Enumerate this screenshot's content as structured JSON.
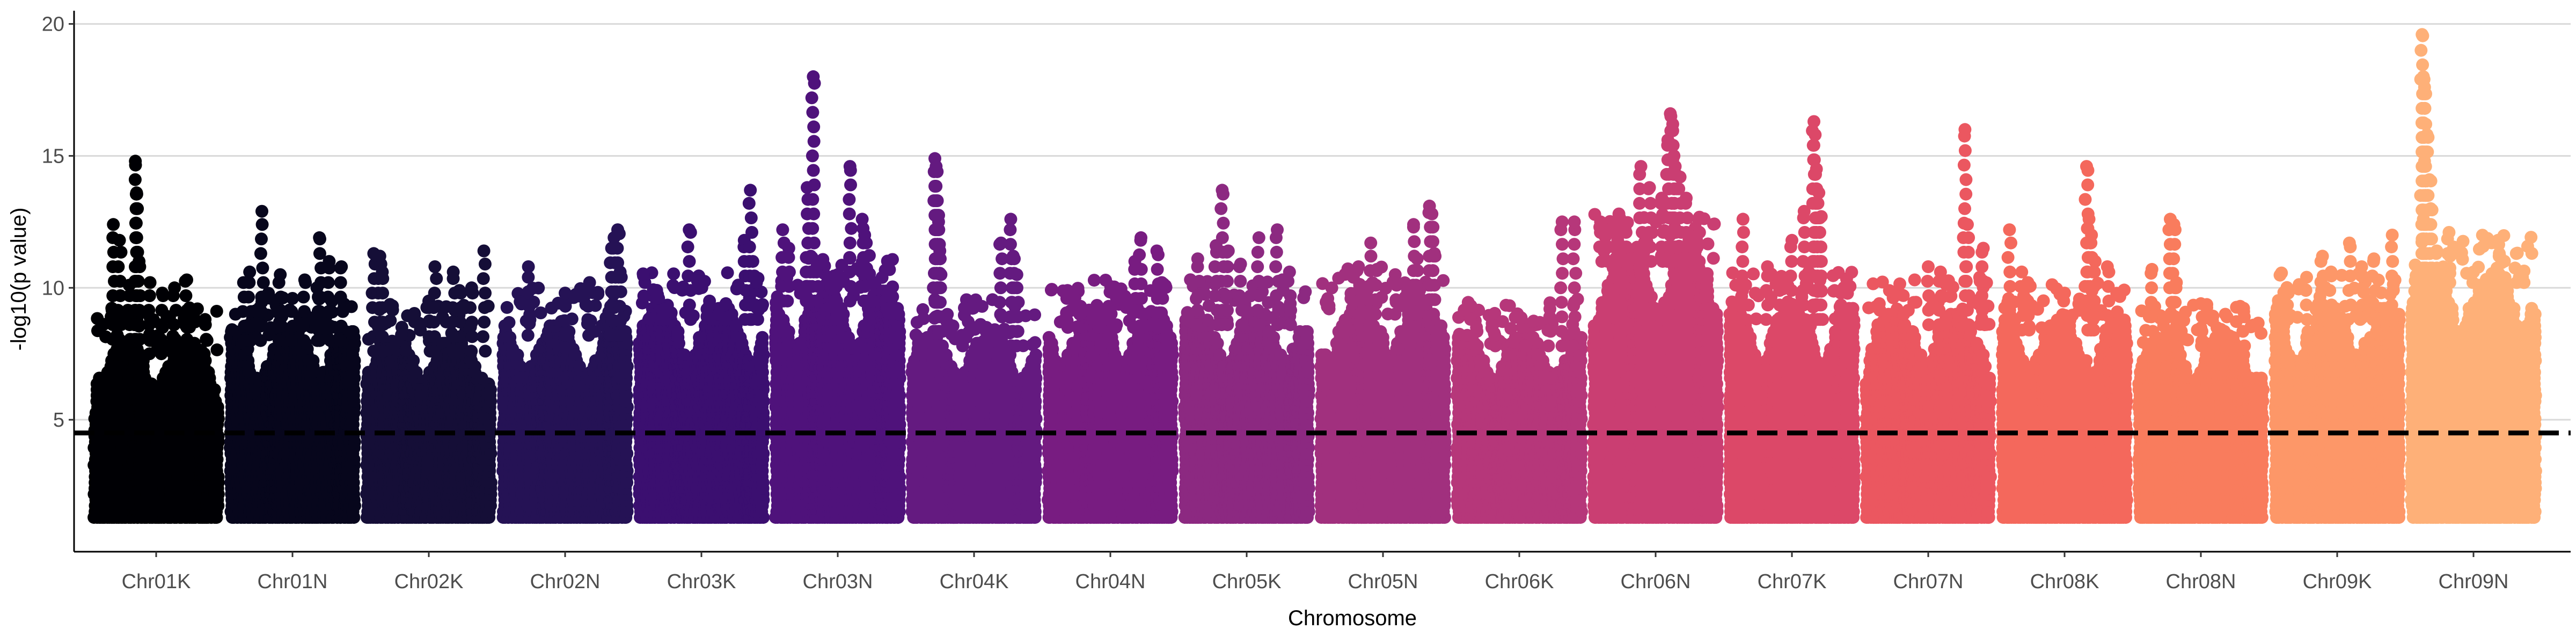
{
  "chart_data": {
    "type": "scatter",
    "subtype": "manhattan",
    "xlabel": "Chromosome",
    "ylabel": "-log10(p value)",
    "ylim": [
      0,
      20.5
    ],
    "yticks": [
      5,
      10,
      15,
      20
    ],
    "grid": "horizontal major lines",
    "legend": "none",
    "threshold": {
      "value": 4.5,
      "style": "dashed",
      "color": "#000000"
    },
    "min_plotted_value": 1.3,
    "categories": [
      "Chr01K",
      "Chr01N",
      "Chr02K",
      "Chr02N",
      "Chr03K",
      "Chr03N",
      "Chr04K",
      "Chr04N",
      "Chr05K",
      "Chr05N",
      "Chr06K",
      "Chr06N",
      "Chr07K",
      "Chr07N",
      "Chr08K",
      "Chr08N",
      "Chr09K",
      "Chr09N"
    ],
    "series": [
      {
        "category": "Chr01K",
        "color": "#000004",
        "bulk_max": 7.5,
        "peaks": [
          [
            0.15,
            12.4
          ],
          [
            0.2,
            11.8
          ],
          [
            0.28,
            10.1
          ],
          [
            0.33,
            14.8
          ],
          [
            0.34,
            13.6
          ],
          [
            0.36,
            11.0
          ],
          [
            0.45,
            10.2
          ],
          [
            0.55,
            9.8
          ],
          [
            0.65,
            10.0
          ],
          [
            0.75,
            10.3
          ],
          [
            0.9,
            8.8
          ]
        ]
      },
      {
        "category": "Chr01N",
        "color": "#07061c",
        "bulk_max": 8.0,
        "peaks": [
          [
            0.1,
            10.2
          ],
          [
            0.15,
            10.6
          ],
          [
            0.25,
            12.9
          ],
          [
            0.4,
            10.5
          ],
          [
            0.5,
            9.6
          ],
          [
            0.6,
            10.3
          ],
          [
            0.7,
            10.0
          ],
          [
            0.72,
            11.9
          ],
          [
            0.8,
            11.0
          ],
          [
            0.9,
            10.8
          ]
        ]
      },
      {
        "category": "Chr02K",
        "color": "#150e37",
        "bulk_max": 7.6,
        "peaks": [
          [
            0.05,
            11.3
          ],
          [
            0.1,
            11.2
          ],
          [
            0.12,
            10.6
          ],
          [
            0.5,
            9.5
          ],
          [
            0.55,
            10.8
          ],
          [
            0.7,
            10.6
          ],
          [
            0.75,
            9.9
          ],
          [
            0.85,
            10.0
          ],
          [
            0.95,
            11.4
          ]
        ]
      },
      {
        "category": "Chr02N",
        "color": "#251255",
        "bulk_max": 8.2,
        "peaks": [
          [
            0.2,
            10.8
          ],
          [
            0.5,
            9.8
          ],
          [
            0.7,
            10.2
          ],
          [
            0.9,
            11.9
          ],
          [
            0.93,
            12.2
          ],
          [
            0.88,
            11.5
          ],
          [
            0.95,
            10.6
          ]
        ]
      },
      {
        "category": "Chr03K",
        "color": "#3b0f70",
        "bulk_max": 8.8,
        "peaks": [
          [
            0.15,
            9.6
          ],
          [
            0.2,
            9.2
          ],
          [
            0.4,
            12.2
          ],
          [
            0.7,
            9.4
          ],
          [
            0.85,
            11.8
          ],
          [
            0.9,
            13.7
          ],
          [
            0.92,
            11.0
          ],
          [
            0.95,
            10.2
          ]
        ]
      },
      {
        "category": "Chr03N",
        "color": "#4f127b",
        "bulk_max": 9.5,
        "peaks": [
          [
            0.05,
            12.2
          ],
          [
            0.1,
            11.5
          ],
          [
            0.25,
            13.8
          ],
          [
            0.3,
            18.0
          ],
          [
            0.28,
            11.2
          ],
          [
            0.33,
            10.8
          ],
          [
            0.5,
            10.5
          ],
          [
            0.6,
            14.6
          ],
          [
            0.7,
            12.6
          ],
          [
            0.72,
            12.0
          ],
          [
            0.8,
            10.2
          ],
          [
            0.9,
            9.2
          ]
        ]
      },
      {
        "category": "Chr04K",
        "color": "#641a80",
        "bulk_max": 7.8,
        "peaks": [
          [
            0.18,
            14.9
          ],
          [
            0.19,
            14.6
          ],
          [
            0.2,
            13.3
          ],
          [
            0.21,
            12.5
          ],
          [
            0.22,
            11.4
          ],
          [
            0.23,
            10.5
          ],
          [
            0.4,
            8.2
          ],
          [
            0.6,
            8.5
          ],
          [
            0.72,
            11.7
          ],
          [
            0.8,
            12.6
          ],
          [
            0.82,
            11.2
          ],
          [
            0.85,
            10.5
          ]
        ]
      },
      {
        "category": "Chr04N",
        "color": "#781c81",
        "bulk_max": 8.5,
        "peaks": [
          [
            0.15,
            9.9
          ],
          [
            0.25,
            9.0
          ],
          [
            0.45,
            8.8
          ],
          [
            0.55,
            8.6
          ],
          [
            0.7,
            11.0
          ],
          [
            0.75,
            11.9
          ],
          [
            0.88,
            11.4
          ],
          [
            0.92,
            10.2
          ]
        ]
      },
      {
        "category": "Chr05K",
        "color": "#8c2981",
        "bulk_max": 8.6,
        "peaks": [
          [
            0.1,
            11.1
          ],
          [
            0.25,
            11.6
          ],
          [
            0.3,
            13.7
          ],
          [
            0.35,
            11.4
          ],
          [
            0.45,
            10.9
          ],
          [
            0.6,
            11.9
          ],
          [
            0.75,
            12.2
          ],
          [
            0.85,
            10.6
          ]
        ]
      },
      {
        "category": "Chr05N",
        "color": "#a1307e",
        "bulk_max": 9.0,
        "peaks": [
          [
            0.3,
            10.8
          ],
          [
            0.4,
            11.7
          ],
          [
            0.45,
            10.7
          ],
          [
            0.6,
            10.5
          ],
          [
            0.75,
            12.4
          ],
          [
            0.78,
            11.1
          ],
          [
            0.88,
            13.1
          ],
          [
            0.9,
            12.8
          ],
          [
            0.92,
            11.3
          ]
        ]
      },
      {
        "category": "Chr06K",
        "color": "#b6377a",
        "bulk_max": 7.8,
        "peaks": [
          [
            0.15,
            8.5
          ],
          [
            0.3,
            8.2
          ],
          [
            0.55,
            7.8
          ],
          [
            0.75,
            9.2
          ],
          [
            0.85,
            12.5
          ],
          [
            0.95,
            12.5
          ]
        ]
      },
      {
        "category": "Chr06N",
        "color": "#ca3e72",
        "bulk_max": 11.0,
        "peaks": [
          [
            0.05,
            12.5
          ],
          [
            0.12,
            12.2
          ],
          [
            0.2,
            12.8
          ],
          [
            0.25,
            12.4
          ],
          [
            0.38,
            14.6
          ],
          [
            0.45,
            13.8
          ],
          [
            0.55,
            13.4
          ],
          [
            0.62,
            16.6
          ],
          [
            0.64,
            16.2
          ],
          [
            0.6,
            15.6
          ],
          [
            0.65,
            15.0
          ],
          [
            0.66,
            14.6
          ],
          [
            0.7,
            14.2
          ],
          [
            0.75,
            13.4
          ],
          [
            0.85,
            12.6
          ]
        ]
      },
      {
        "category": "Chr07K",
        "color": "#dc4868",
        "bulk_max": 8.8,
        "peaks": [
          [
            0.1,
            12.6
          ],
          [
            0.3,
            10.8
          ],
          [
            0.4,
            10.0
          ],
          [
            0.5,
            11.8
          ],
          [
            0.6,
            12.9
          ],
          [
            0.68,
            16.3
          ],
          [
            0.69,
            15.8
          ],
          [
            0.7,
            14.5
          ],
          [
            0.72,
            13.6
          ],
          [
            0.74,
            12.7
          ],
          [
            0.9,
            9.8
          ]
        ]
      },
      {
        "category": "Chr07N",
        "color": "#eb5760",
        "bulk_max": 8.6,
        "peaks": [
          [
            0.1,
            9.4
          ],
          [
            0.3,
            9.0
          ],
          [
            0.5,
            10.8
          ],
          [
            0.6,
            10.6
          ],
          [
            0.8,
            16.0
          ],
          [
            0.82,
            12.4
          ],
          [
            0.95,
            11.5
          ]
        ]
      },
      {
        "category": "Chr08K",
        "color": "#f4685c",
        "bulk_max": 8.4,
        "peaks": [
          [
            0.05,
            12.2
          ],
          [
            0.15,
            10.6
          ],
          [
            0.2,
            10.2
          ],
          [
            0.5,
            9.8
          ],
          [
            0.68,
            14.6
          ],
          [
            0.7,
            12.6
          ],
          [
            0.72,
            12.0
          ],
          [
            0.75,
            11.0
          ],
          [
            0.85,
            10.8
          ]
        ]
      },
      {
        "category": "Chr08N",
        "color": "#f97c5d",
        "bulk_max": 7.8,
        "peaks": [
          [
            0.1,
            10.7
          ],
          [
            0.25,
            12.6
          ],
          [
            0.28,
            12.4
          ],
          [
            0.3,
            10.2
          ],
          [
            0.5,
            9.4
          ],
          [
            0.7,
            9.0
          ],
          [
            0.85,
            9.1
          ]
        ]
      },
      {
        "category": "Chr09K",
        "color": "#fd9768",
        "bulk_max": 8.8,
        "peaks": [
          [
            0.1,
            9.8
          ],
          [
            0.25,
            10.4
          ],
          [
            0.38,
            11.2
          ],
          [
            0.45,
            10.6
          ],
          [
            0.6,
            11.7
          ],
          [
            0.7,
            10.8
          ],
          [
            0.8,
            11.1
          ],
          [
            0.95,
            12.0
          ]
        ]
      },
      {
        "category": "Chr09N",
        "color": "#feb078",
        "bulk_max": 10.2,
        "peaks": [
          [
            0.08,
            19.6
          ],
          [
            0.09,
            18.0
          ],
          [
            0.1,
            17.6
          ],
          [
            0.11,
            16.2
          ],
          [
            0.12,
            15.8
          ],
          [
            0.1,
            14.8
          ],
          [
            0.14,
            14.1
          ],
          [
            0.15,
            13.0
          ],
          [
            0.09,
            12.6
          ],
          [
            0.2,
            11.4
          ],
          [
            0.3,
            12.1
          ],
          [
            0.5,
            10.6
          ],
          [
            0.7,
            11.8
          ],
          [
            0.85,
            11.3
          ],
          [
            0.9,
            10.4
          ]
        ]
      }
    ]
  }
}
